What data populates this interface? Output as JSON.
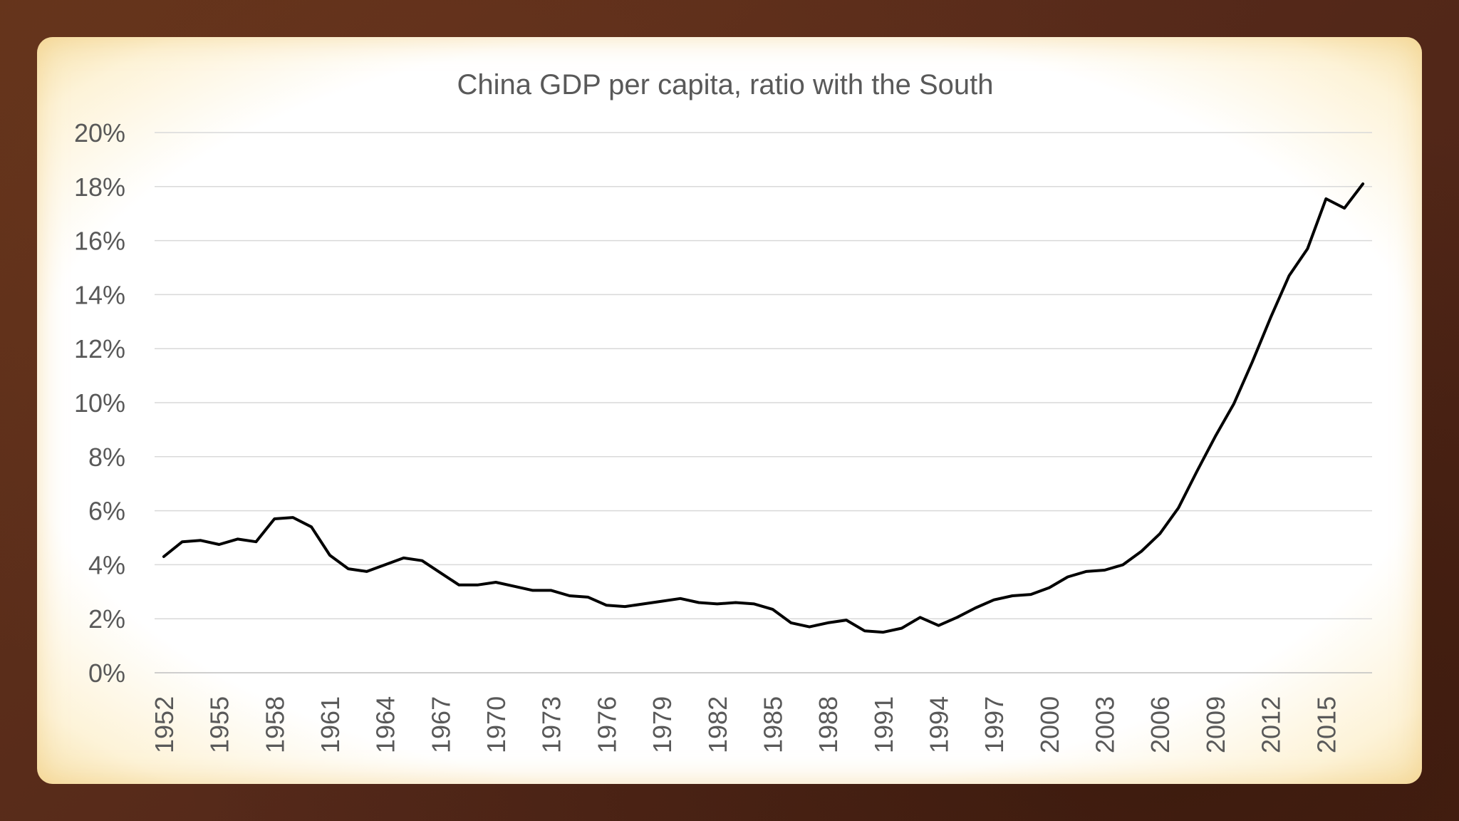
{
  "chart_data": {
    "type": "line",
    "title": "China GDP per capita, ratio with the South",
    "xlabel": "",
    "ylabel": "",
    "ylim": [
      0,
      20
    ],
    "y_tick_labels": [
      "0%",
      "2%",
      "4%",
      "6%",
      "8%",
      "10%",
      "12%",
      "14%",
      "16%",
      "18%",
      "20%"
    ],
    "x_tick_labels": [
      "1952",
      "1955",
      "1958",
      "1961",
      "1964",
      "1967",
      "1970",
      "1973",
      "1976",
      "1979",
      "1982",
      "1985",
      "1988",
      "1991",
      "1994",
      "1997",
      "2000",
      "2003",
      "2006",
      "2009",
      "2012",
      "2015"
    ],
    "x_start": 1952,
    "x_end": 2017,
    "grid": true,
    "series": [
      {
        "name": "China GDP per capita ratio with the South (%)",
        "x": [
          1952,
          1953,
          1954,
          1955,
          1956,
          1957,
          1958,
          1959,
          1960,
          1961,
          1962,
          1963,
          1964,
          1965,
          1966,
          1967,
          1968,
          1969,
          1970,
          1971,
          1972,
          1973,
          1974,
          1975,
          1976,
          1977,
          1978,
          1979,
          1980,
          1981,
          1982,
          1983,
          1984,
          1985,
          1986,
          1987,
          1988,
          1989,
          1990,
          1991,
          1992,
          1993,
          1994,
          1995,
          1996,
          1997,
          1998,
          1999,
          2000,
          2001,
          2002,
          2003,
          2004,
          2005,
          2006,
          2007,
          2008,
          2009,
          2010,
          2011,
          2012,
          2013,
          2014,
          2015,
          2016,
          2017
        ],
        "values": [
          4.3,
          4.85,
          4.9,
          4.75,
          4.95,
          4.85,
          5.7,
          5.75,
          5.4,
          4.35,
          3.85,
          3.75,
          4.0,
          4.25,
          4.15,
          3.7,
          3.25,
          3.25,
          3.35,
          3.2,
          3.05,
          3.05,
          2.85,
          2.8,
          2.5,
          2.45,
          2.55,
          2.65,
          2.75,
          2.6,
          2.55,
          2.6,
          2.55,
          2.35,
          1.85,
          1.7,
          1.85,
          1.95,
          1.55,
          1.5,
          1.65,
          2.05,
          1.75,
          2.05,
          2.4,
          2.7,
          2.85,
          2.9,
          3.15,
          3.55,
          3.75,
          3.8,
          4.0,
          4.5,
          5.15,
          6.1,
          7.45,
          8.75,
          9.95,
          11.5,
          13.15,
          14.7,
          15.7,
          17.55,
          17.2,
          18.1
        ]
      }
    ],
    "line_color": "#000000",
    "grid_color": "#d9d9d9",
    "text_color": "#595959"
  }
}
